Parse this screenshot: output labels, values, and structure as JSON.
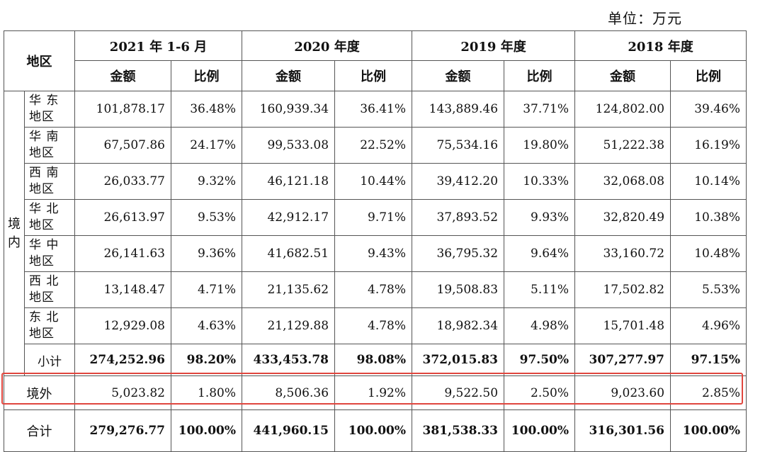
{
  "unit_label": "单位：万元",
  "header": {
    "region": "地区",
    "periods": [
      "2021 年 1-6 月",
      "2020 年度",
      "2019 年度",
      "2018 年度"
    ],
    "amount": "金额",
    "ratio": "比例"
  },
  "domestic_label": [
    "境",
    "内"
  ],
  "rows": [
    {
      "region": [
        "华 东",
        "地区"
      ],
      "values": [
        "101,878.17",
        "36.48%",
        "160,939.34",
        "36.41%",
        "143,889.46",
        "37.71%",
        "124,802.00",
        "39.46%"
      ]
    },
    {
      "region": [
        "华 南",
        "地区"
      ],
      "values": [
        "67,507.86",
        "24.17%",
        "99,533.08",
        "22.52%",
        "75,534.16",
        "19.80%",
        "51,222.38",
        "16.19%"
      ]
    },
    {
      "region": [
        "西 南",
        "地区"
      ],
      "values": [
        "26,033.77",
        "9.32%",
        "46,121.18",
        "10.44%",
        "39,412.20",
        "10.33%",
        "32,068.08",
        "10.14%"
      ]
    },
    {
      "region": [
        "华 北",
        "地区"
      ],
      "values": [
        "26,613.97",
        "9.53%",
        "42,912.17",
        "9.71%",
        "37,893.52",
        "9.93%",
        "32,820.49",
        "10.38%"
      ]
    },
    {
      "region": [
        "华 中",
        "地区"
      ],
      "values": [
        "26,141.63",
        "9.36%",
        "41,682.51",
        "9.43%",
        "36,795.32",
        "9.64%",
        "33,160.72",
        "10.48%"
      ]
    },
    {
      "region": [
        "西 北",
        "地区"
      ],
      "values": [
        "13,148.47",
        "4.71%",
        "21,135.62",
        "4.78%",
        "19,508.83",
        "5.11%",
        "17,502.82",
        "5.53%"
      ]
    },
    {
      "region": [
        "东 北",
        "地区"
      ],
      "values": [
        "12,929.08",
        "4.63%",
        "21,129.88",
        "4.78%",
        "18,982.34",
        "4.98%",
        "15,701.48",
        "4.96%"
      ]
    }
  ],
  "subtotal": {
    "label": "小计",
    "values": [
      "274,252.96",
      "98.20%",
      "433,453.78",
      "98.08%",
      "372,015.83",
      "97.50%",
      "307,277.97",
      "97.15%"
    ]
  },
  "overseas": {
    "label": "境外",
    "values": [
      "5,023.82",
      "1.80%",
      "8,506.36",
      "1.92%",
      "9,522.50",
      "2.50%",
      "9,023.60",
      "2.85%"
    ]
  },
  "total": {
    "label": "合计",
    "values": [
      "279,276.77",
      "100.00%",
      "441,960.15",
      "100.00%",
      "381,538.33",
      "100.00%",
      "316,301.56",
      "100.00%"
    ]
  },
  "highlight_color": "#e0463e"
}
